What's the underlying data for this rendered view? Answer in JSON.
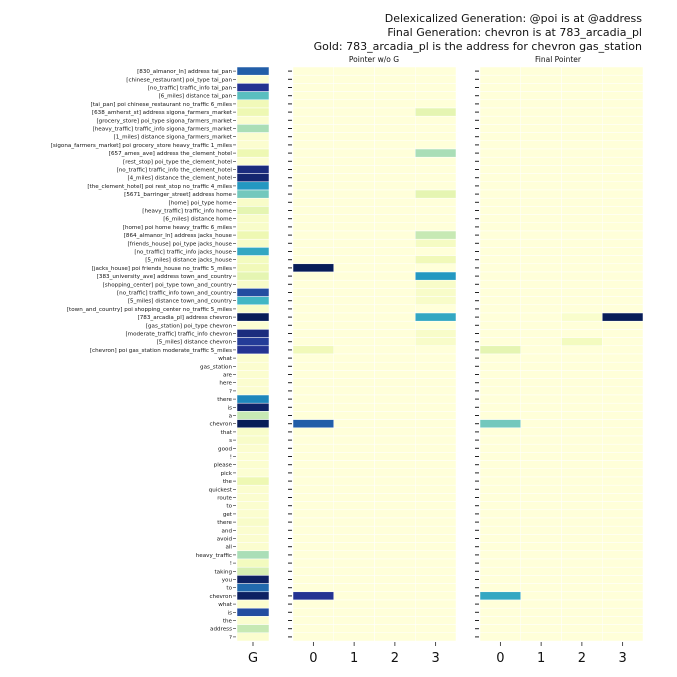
{
  "header": {
    "line1": "Delexicalized Generation: @poi is at @address",
    "line2": "Final Generation: chevron is at 783_arcadia_pl",
    "line3": "Gold: 783_arcadia_pl is the address for chevron gas_station"
  },
  "colormap": {
    "name": "YlGnBu",
    "stops": [
      "#ffffd9",
      "#edf8b1",
      "#c7e9b4",
      "#7fcdbb",
      "#41b6c4",
      "#1d91c0",
      "#225ea8",
      "#253494",
      "#081d58"
    ]
  },
  "chart_data": [
    {
      "type": "heatmap",
      "title": "",
      "xlabel": "",
      "ylabel": "",
      "x": [
        "G"
      ],
      "rows": [
        "[830_almanor_ln] address tai_pan",
        "[chinese_restaurant] poi_type tai_pan",
        "[no_traffic] traffic_info tai_pan",
        "[6_miles] distance tai_pan",
        "[tai_pan] poi chinese_restaurant no_traffic 6_miles",
        "[638_amherst_st] address sigona_farmers_market",
        "[grocery_store] poi_type sigona_farmers_market",
        "[heavy_traffic] traffic_info sigona_farmers_market",
        "[1_miles] distance sigona_farmers_market",
        "[sigona_farmers_market] poi grocery_store heavy_traffic 1_miles",
        "[657_ames_ave] address the_clement_hotel",
        "[rest_stop] poi_type the_clement_hotel",
        "[no_traffic] traffic_info the_clement_hotel",
        "[4_miles] distance the_clement_hotel",
        "[the_clement_hotel] poi rest_stop no_traffic 4_miles",
        "[5671_barringer_street] address home",
        "[home] poi_type home",
        "[heavy_traffic] traffic_info home",
        "[6_miles] distance home",
        "[home] poi home heavy_traffic 6_miles",
        "[864_almanor_ln] address jacks_house",
        "[friends_house] poi_type jacks_house",
        "[no_traffic] traffic_info jacks_house",
        "[5_miles] distance jacks_house",
        "[jacks_house] poi friends_house no_traffic 5_miles",
        "[383_university_ave] address town_and_country",
        "[shopping_center] poi_type town_and_country",
        "[no_traffic] traffic_info town_and_country",
        "[5_miles] distance town_and_country",
        "[town_and_country] poi shopping_center no_traffic 5_miles",
        "[783_arcadia_pl] address chevron",
        "[gas_station] poi_type chevron",
        "[moderate_traffic] traffic_info chevron",
        "[5_miles] distance chevron",
        "[chevron] poi gas_station moderate_traffic 5_miles",
        "what",
        "gas_station",
        "are",
        "here",
        "?",
        "there",
        "is",
        "a",
        "chevron",
        "that",
        "s",
        "good",
        "!",
        "please",
        "pick",
        "the",
        "quickest",
        "route",
        "to",
        "get",
        "there",
        "and",
        "avoid",
        "all",
        "heavy_traffic",
        "!",
        "taking",
        "you",
        "to",
        "chevron",
        "what",
        "is",
        "the",
        "address",
        "?"
      ],
      "values": [
        [
          0.75
        ],
        [
          0.02
        ],
        [
          0.88
        ],
        [
          0.45
        ],
        [
          0.1
        ],
        [
          0.12
        ],
        [
          0.03
        ],
        [
          0.3
        ],
        [
          0.03
        ],
        [
          0.03
        ],
        [
          0.12
        ],
        [
          0.02
        ],
        [
          0.92
        ],
        [
          0.95
        ],
        [
          0.6
        ],
        [
          0.4
        ],
        [
          0.05
        ],
        [
          0.15
        ],
        [
          0.05
        ],
        [
          0.05
        ],
        [
          0.12
        ],
        [
          0.05
        ],
        [
          0.55
        ],
        [
          0.08
        ],
        [
          0.1
        ],
        [
          0.15
        ],
        [
          0.05
        ],
        [
          0.8
        ],
        [
          0.5
        ],
        [
          0.05
        ],
        [
          1.0
        ],
        [
          0.02
        ],
        [
          0.92
        ],
        [
          0.85
        ],
        [
          0.88
        ],
        [
          0.03
        ],
        [
          0.03
        ],
        [
          0.03
        ],
        [
          0.03
        ],
        [
          0.03
        ],
        [
          0.65
        ],
        [
          0.97
        ],
        [
          0.25
        ],
        [
          1.0
        ],
        [
          0.05
        ],
        [
          0.05
        ],
        [
          0.03
        ],
        [
          0.02
        ],
        [
          0.03
        ],
        [
          0.02
        ],
        [
          0.12
        ],
        [
          0.03
        ],
        [
          0.03
        ],
        [
          0.03
        ],
        [
          0.03
        ],
        [
          0.05
        ],
        [
          0.03
        ],
        [
          0.03
        ],
        [
          0.03
        ],
        [
          0.3
        ],
        [
          0.08
        ],
        [
          0.2
        ],
        [
          0.98
        ],
        [
          0.72
        ],
        [
          0.98
        ],
        [
          0.03
        ],
        [
          0.8
        ],
        [
          0.03
        ],
        [
          0.25
        ],
        [
          0.03
        ]
      ]
    },
    {
      "type": "heatmap",
      "title": "Pointer w/o G",
      "xlabel": "",
      "ylabel": "",
      "x": [
        "0",
        "1",
        "2",
        "3"
      ],
      "nonzero": [
        {
          "row": 5,
          "col": 3,
          "value": 0.15
        },
        {
          "row": 10,
          "col": 3,
          "value": 0.3
        },
        {
          "row": 15,
          "col": 3,
          "value": 0.15
        },
        {
          "row": 20,
          "col": 3,
          "value": 0.25
        },
        {
          "row": 21,
          "col": 3,
          "value": 0.07
        },
        {
          "row": 23,
          "col": 3,
          "value": 0.1
        },
        {
          "row": 24,
          "col": 0,
          "value": 1.0
        },
        {
          "row": 25,
          "col": 3,
          "value": 0.6
        },
        {
          "row": 26,
          "col": 3,
          "value": 0.05
        },
        {
          "row": 27,
          "col": 3,
          "value": 0.05
        },
        {
          "row": 28,
          "col": 3,
          "value": 0.05
        },
        {
          "row": 30,
          "col": 3,
          "value": 0.55
        },
        {
          "row": 32,
          "col": 3,
          "value": 0.05
        },
        {
          "row": 33,
          "col": 3,
          "value": 0.05
        },
        {
          "row": 34,
          "col": 0,
          "value": 0.1
        },
        {
          "row": 43,
          "col": 0,
          "value": 0.75
        },
        {
          "row": 64,
          "col": 0,
          "value": 0.88
        }
      ]
    },
    {
      "type": "heatmap",
      "title": "Final Pointer",
      "xlabel": "",
      "ylabel": "",
      "x": [
        "0",
        "1",
        "2",
        "3"
      ],
      "nonzero": [
        {
          "row": 30,
          "col": 2,
          "value": 0.04
        },
        {
          "row": 30,
          "col": 3,
          "value": 1.0
        },
        {
          "row": 33,
          "col": 2,
          "value": 0.08
        },
        {
          "row": 34,
          "col": 0,
          "value": 0.15
        },
        {
          "row": 43,
          "col": 0,
          "value": 0.4
        },
        {
          "row": 64,
          "col": 0,
          "value": 0.55
        }
      ]
    }
  ]
}
